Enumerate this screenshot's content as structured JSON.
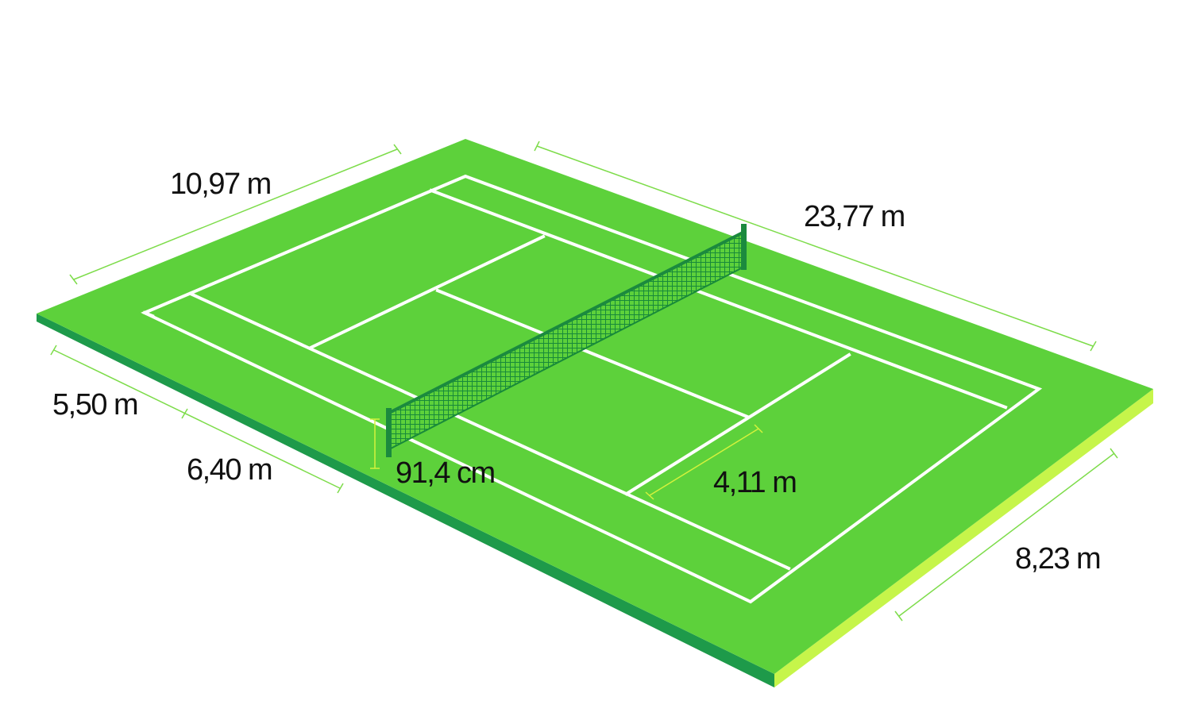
{
  "colors": {
    "grass": "#5dd13b",
    "grass_shadow": "#1e9a4a",
    "grass_highlight": "#c6f54a",
    "lines": "#ffffff",
    "net_frame": "#1b8a3e",
    "net_mesh": "#188a3a",
    "dimension_line": "#7ddc4a",
    "net_height_marker": "#d4f23c",
    "text": "#111111"
  },
  "dimensions": {
    "court_width": "10,97 m",
    "court_length": "23,77 m",
    "backcourt_depth": "5,50 m",
    "service_box_depth": "6,40 m",
    "net_height": "91,4 cm",
    "service_box_width": "4,11 m",
    "singles_width": "8,23 m"
  }
}
